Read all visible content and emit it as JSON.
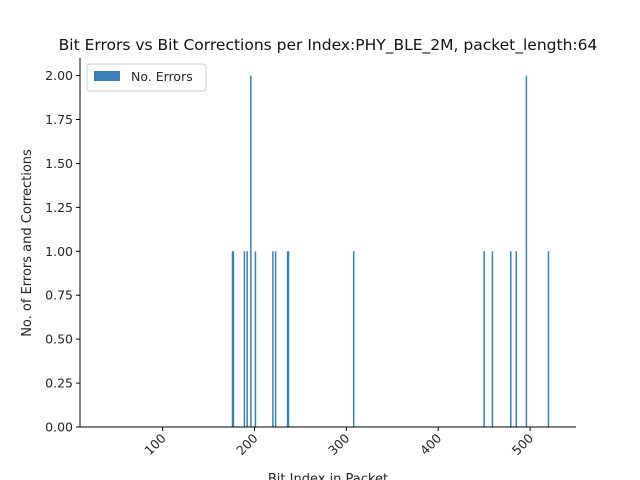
{
  "chart_data": {
    "type": "bar",
    "title": "Bit Errors vs Bit Corrections per Index:PHY_BLE_2M, packet_length:64",
    "xlabel": "Bit Index in Packet",
    "ylabel": "No. of Errors and Corrections",
    "xlim": [
      10,
      550
    ],
    "ylim": [
      0,
      2.1
    ],
    "x_ticks": [
      100,
      200,
      300,
      400,
      500
    ],
    "y_ticks": [
      "0.00",
      "0.25",
      "0.50",
      "0.75",
      "1.00",
      "1.25",
      "1.50",
      "1.75",
      "2.00"
    ],
    "grid": false,
    "legend_position": "upper-left",
    "series": [
      {
        "name": "No. Errors",
        "color": "#3a7fba",
        "x": [
          176,
          177,
          189,
          192,
          196,
          201,
          220,
          223,
          236,
          237,
          308,
          450,
          459,
          479,
          485,
          496,
          520
        ],
        "values": [
          1,
          1,
          1,
          1,
          2,
          1,
          1,
          1,
          1,
          1,
          1,
          1,
          1,
          1,
          1,
          2,
          1
        ]
      }
    ]
  }
}
